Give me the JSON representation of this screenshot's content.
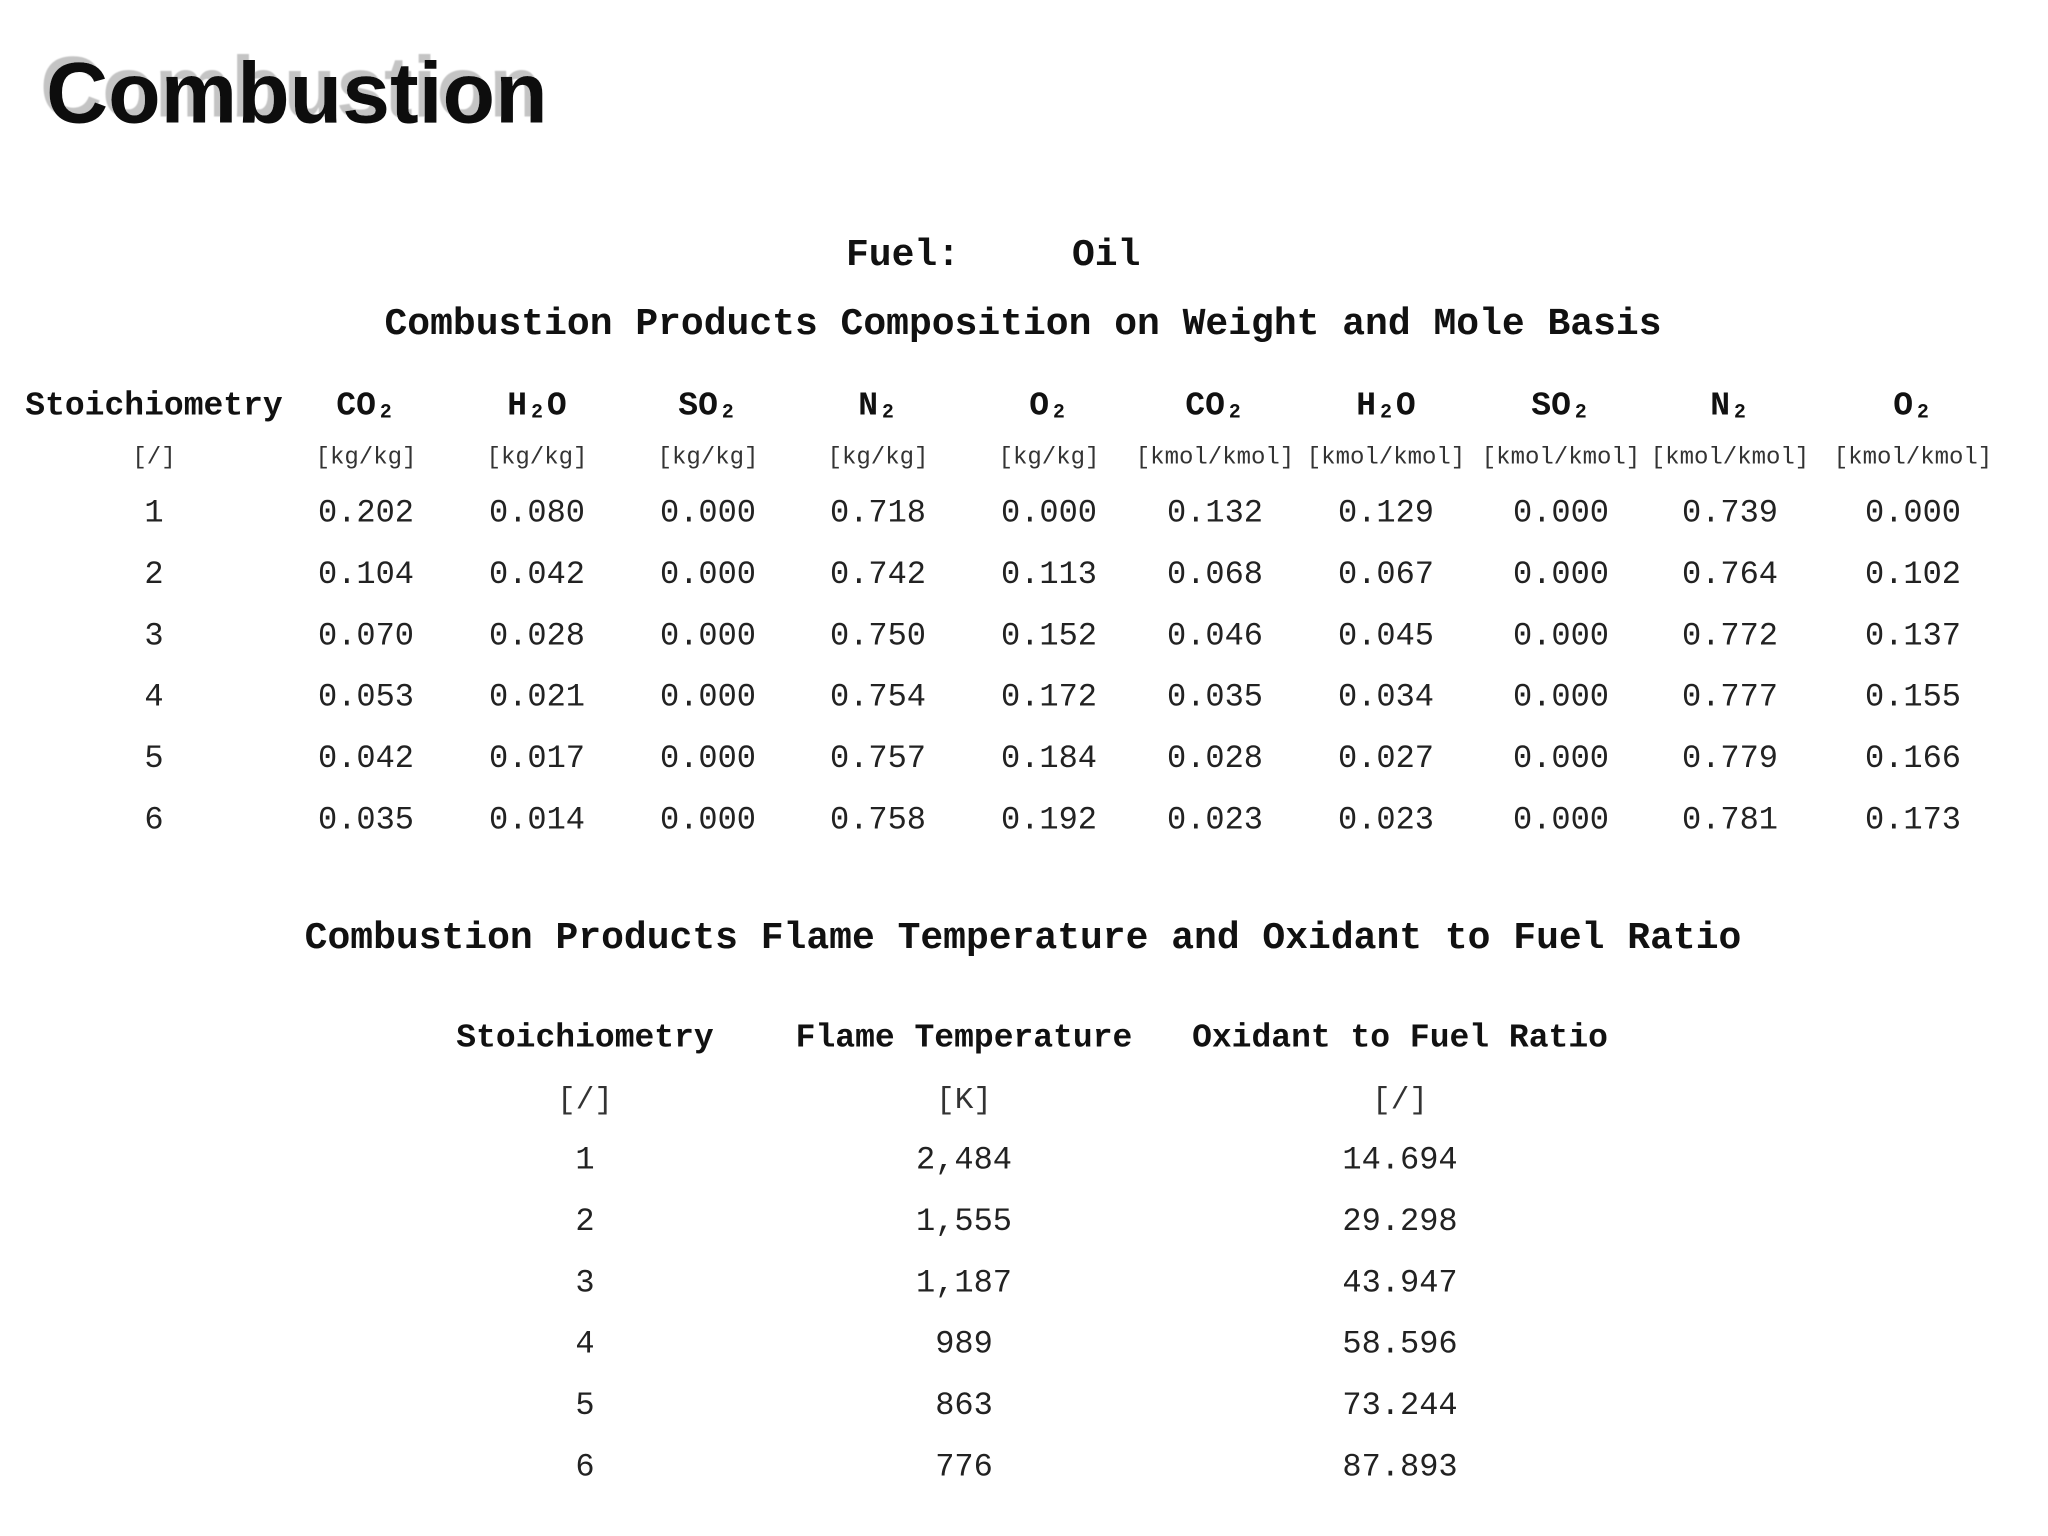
{
  "header": {
    "title": "Combustion"
  },
  "fuel": {
    "label": "Fuel:",
    "value": "Oil"
  },
  "composition": {
    "title": "Combustion Products Composition on Weight and Mole Basis",
    "columns": [
      {
        "name": "Stoichiometry",
        "unit": "[/]"
      },
      {
        "name": "CO₂",
        "unit": "[kg/kg]"
      },
      {
        "name": "H₂O",
        "unit": "[kg/kg]"
      },
      {
        "name": "SO₂",
        "unit": "[kg/kg]"
      },
      {
        "name": "N₂",
        "unit": "[kg/kg]"
      },
      {
        "name": "O₂",
        "unit": "[kg/kg]"
      },
      {
        "name": "CO₂",
        "unit": "[kmol/kmol]"
      },
      {
        "name": "H₂O",
        "unit": "[kmol/kmol]"
      },
      {
        "name": "SO₂",
        "unit": "[kmol/kmol]"
      },
      {
        "name": "N₂",
        "unit": "[kmol/kmol]"
      },
      {
        "name": "O₂",
        "unit": "[kmol/kmol]"
      }
    ],
    "rows": [
      [
        "1",
        "0.202",
        "0.080",
        "0.000",
        "0.718",
        "0.000",
        "0.132",
        "0.129",
        "0.000",
        "0.739",
        "0.000"
      ],
      [
        "2",
        "0.104",
        "0.042",
        "0.000",
        "0.742",
        "0.113",
        "0.068",
        "0.067",
        "0.000",
        "0.764",
        "0.102"
      ],
      [
        "3",
        "0.070",
        "0.028",
        "0.000",
        "0.750",
        "0.152",
        "0.046",
        "0.045",
        "0.000",
        "0.772",
        "0.137"
      ],
      [
        "4",
        "0.053",
        "0.021",
        "0.000",
        "0.754",
        "0.172",
        "0.035",
        "0.034",
        "0.000",
        "0.777",
        "0.155"
      ],
      [
        "5",
        "0.042",
        "0.017",
        "0.000",
        "0.757",
        "0.184",
        "0.028",
        "0.027",
        "0.000",
        "0.779",
        "0.166"
      ],
      [
        "6",
        "0.035",
        "0.014",
        "0.000",
        "0.758",
        "0.192",
        "0.023",
        "0.023",
        "0.000",
        "0.781",
        "0.173"
      ]
    ]
  },
  "flame": {
    "title": "Combustion Products Flame Temperature and Oxidant to Fuel Ratio",
    "columns": [
      {
        "name": "Stoichiometry",
        "unit": "[/]"
      },
      {
        "name": "Flame Temperature",
        "unit": "[K]"
      },
      {
        "name": "Oxidant to Fuel Ratio",
        "unit": "[/]"
      }
    ],
    "rows": [
      [
        "1",
        "2,484",
        "14.694"
      ],
      [
        "2",
        "1,555",
        "29.298"
      ],
      [
        "3",
        "1,187",
        "43.947"
      ],
      [
        "4",
        "989",
        "58.596"
      ],
      [
        "5",
        "863",
        "73.244"
      ],
      [
        "6",
        "776",
        "87.893"
      ]
    ]
  }
}
